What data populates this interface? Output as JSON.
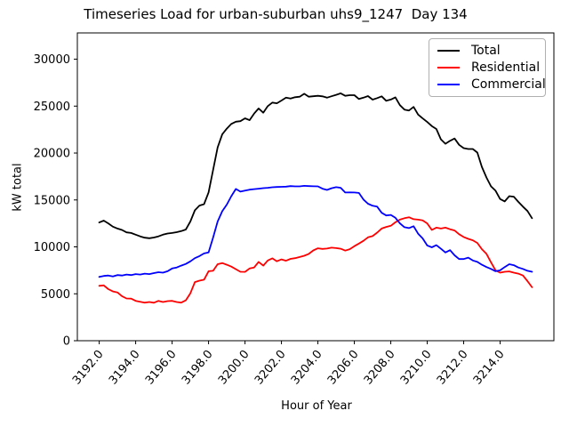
{
  "figure": {
    "background": "#ffffff"
  },
  "chart_data": {
    "type": "line",
    "title": "Timeseries Load for urban-suburban uhs9_1247  Day 134",
    "xlabel": "Hour of Year",
    "ylabel": "kW total",
    "xlim": [
      3190.8,
      3216.95
    ],
    "ylim": [
      0,
      32800
    ],
    "grid": false,
    "legend_position": "upper right",
    "xticks": [
      3192,
      3194,
      3196,
      3198,
      3200,
      3202,
      3204,
      3206,
      3208,
      3210,
      3212,
      3214
    ],
    "xtick_labels": [
      "3192.0",
      "3194.0",
      "3196.0",
      "3198.0",
      "3200.0",
      "3202.0",
      "3204.0",
      "3206.0",
      "3208.0",
      "3210.0",
      "3212.0",
      "3214.0"
    ],
    "yticks": [
      0,
      5000,
      10000,
      15000,
      20000,
      25000,
      30000
    ],
    "ytick_labels": [
      "0",
      "5000",
      "10000",
      "15000",
      "20000",
      "25000",
      "30000"
    ],
    "x_start": 3192.0,
    "x_step": 0.25,
    "series": [
      {
        "name": "Total",
        "color": "#000000",
        "values": [
          12600,
          12800,
          12500,
          12150,
          11950,
          11800,
          11550,
          11480,
          11300,
          11120,
          10980,
          10920,
          11000,
          11120,
          11300,
          11420,
          11480,
          11570,
          11680,
          11850,
          12700,
          13900,
          14400,
          14550,
          15800,
          18200,
          20600,
          22000,
          22600,
          23100,
          23340,
          23400,
          23700,
          23500,
          24200,
          24750,
          24300,
          25000,
          25380,
          25300,
          25600,
          25900,
          25800,
          25950,
          26000,
          26320,
          26000,
          26050,
          26100,
          26040,
          25900,
          26050,
          26200,
          26360,
          26100,
          26160,
          26160,
          25760,
          25900,
          26070,
          25690,
          25850,
          26040,
          25570,
          25700,
          25940,
          25100,
          24630,
          24530,
          24910,
          24100,
          23690,
          23310,
          22870,
          22560,
          21460,
          20990,
          21300,
          21550,
          20870,
          20520,
          20430,
          20430,
          20050,
          18520,
          17390,
          16450,
          15980,
          15100,
          14850,
          15400,
          15350,
          14800,
          14290,
          13820,
          13050
        ]
      },
      {
        "name": "Residential",
        "color": "#ff0000",
        "values": [
          5850,
          5900,
          5500,
          5250,
          5150,
          4750,
          4500,
          4480,
          4250,
          4150,
          4060,
          4120,
          4050,
          4250,
          4120,
          4220,
          4250,
          4120,
          4060,
          4300,
          5050,
          6250,
          6400,
          6500,
          7400,
          7450,
          8150,
          8280,
          8100,
          7900,
          7620,
          7350,
          7340,
          7700,
          7800,
          8400,
          8000,
          8550,
          8780,
          8470,
          8660,
          8520,
          8720,
          8800,
          8920,
          9050,
          9250,
          9620,
          9850,
          9780,
          9820,
          9920,
          9870,
          9800,
          9600,
          9750,
          10080,
          10350,
          10650,
          11020,
          11150,
          11520,
          11950,
          12120,
          12250,
          12620,
          12900,
          13050,
          13160,
          12950,
          12900,
          12820,
          12500,
          11800,
          12050,
          11950,
          12050,
          11880,
          11750,
          11350,
          11050,
          10850,
          10700,
          10420,
          9750,
          9250,
          8350,
          7500,
          7250,
          7350,
          7380,
          7250,
          7150,
          6950,
          6350,
          5700
        ]
      },
      {
        "name": "Commercial",
        "color": "#0000ff",
        "values": [
          6800,
          6900,
          6950,
          6850,
          7000,
          6950,
          7050,
          7000,
          7100,
          7050,
          7150,
          7100,
          7200,
          7300,
          7250,
          7400,
          7700,
          7800,
          8000,
          8180,
          8460,
          8800,
          9020,
          9300,
          9400,
          11000,
          12700,
          13800,
          14500,
          15400,
          16170,
          15890,
          16000,
          16100,
          16150,
          16200,
          16260,
          16300,
          16350,
          16380,
          16400,
          16420,
          16480,
          16450,
          16450,
          16500,
          16480,
          16460,
          16450,
          16200,
          16070,
          16250,
          16360,
          16300,
          15790,
          15800,
          15790,
          15750,
          15040,
          14600,
          14380,
          14290,
          13630,
          13350,
          13400,
          13100,
          12500,
          12100,
          12000,
          12200,
          11400,
          10900,
          10150,
          9950,
          10180,
          9800,
          9400,
          9650,
          9100,
          8700,
          8700,
          8850,
          8550,
          8400,
          8100,
          7850,
          7650,
          7400,
          7500,
          7850,
          8150,
          8050,
          7800,
          7650,
          7450,
          7350
        ]
      }
    ]
  }
}
